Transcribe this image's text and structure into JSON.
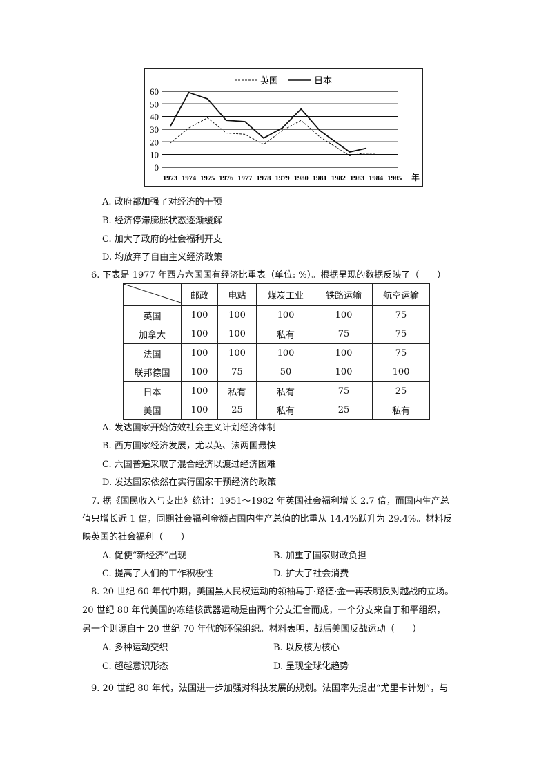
{
  "chart_data": {
    "type": "line",
    "legend": [
      "英国",
      "日本"
    ],
    "legend_position": "top",
    "xlabel": "年",
    "x_ticks": [
      "1973",
      "1974",
      "1975",
      "1976",
      "1977",
      "1978",
      "1979",
      "1980",
      "1981",
      "1982",
      "1983",
      "1984",
      "1985"
    ],
    "y_ticks": [
      "0",
      "10",
      "20",
      "30",
      "40",
      "50",
      "60"
    ],
    "ylim": [
      0,
      60
    ],
    "grid": true,
    "series": [
      {
        "name": "英国",
        "style": "dashed",
        "points": [
          [
            1973,
            19
          ],
          [
            1974,
            31
          ],
          [
            1975,
            39
          ],
          [
            1976,
            27
          ],
          [
            1977,
            26
          ],
          [
            1978,
            18
          ],
          [
            1979,
            29
          ],
          [
            1980,
            37
          ],
          [
            1981,
            24
          ],
          [
            1982.6,
            9
          ],
          [
            1983.3,
            11
          ],
          [
            1984,
            11
          ]
        ]
      },
      {
        "name": "日本",
        "style": "solid",
        "points": [
          [
            1973,
            32
          ],
          [
            1974,
            59
          ],
          [
            1975,
            54
          ],
          [
            1976,
            37
          ],
          [
            1977,
            36
          ],
          [
            1978,
            23
          ],
          [
            1979,
            31
          ],
          [
            1980,
            46
          ],
          [
            1981,
            29
          ],
          [
            1982.6,
            12
          ],
          [
            1983.5,
            15
          ]
        ]
      }
    ]
  },
  "q5_options": [
    "A. 政府都加强了对经济的干预",
    "B. 经济停滞膨胀状态逐渐缓解",
    "C. 加大了政府的社会福利开支",
    "D. 均放弃了自由主义经济政策"
  ],
  "q6": {
    "stem": "6. 下表是 1977 年西方六国国有经济比重表（单位: %）。根据呈现的数据反映了（　　）",
    "headers": [
      "邮政",
      "电站",
      "煤炭工业",
      "铁路运输",
      "航空运输"
    ],
    "rows": [
      {
        "country": "英国",
        "cells": [
          "100",
          "100",
          "100",
          "100",
          "75"
        ]
      },
      {
        "country": "加拿大",
        "cells": [
          "100",
          "100",
          "私有",
          "75",
          "75"
        ]
      },
      {
        "country": "法国",
        "cells": [
          "100",
          "100",
          "100",
          "100",
          "75"
        ]
      },
      {
        "country": "联邦德国",
        "cells": [
          "100",
          "75",
          "50",
          "100",
          "100"
        ]
      },
      {
        "country": "日本",
        "cells": [
          "100",
          "私有",
          "私有",
          "75",
          "25"
        ]
      },
      {
        "country": "美国",
        "cells": [
          "100",
          "25",
          "私有",
          "25",
          "私有"
        ]
      }
    ],
    "options": [
      "A. 发达国家开始仿效社会主义计划经济体制",
      "B. 西方国家经济发展，尤以英、法两国最快",
      "C. 六国普遍采取了混合经济以渡过经济困难",
      "D. 发达国家依然在实行国家干预经济的政策"
    ]
  },
  "q7": {
    "lines": [
      "7. 据《国民收入与支出》统计：1951～1982 年英国社会福利增长 2.7 倍，而国内生产总",
      "值只增长近 1 倍，同期社会福利金额占国内生产总值的比重从 14.4%跃升为 29.4%。材料反",
      "映英国的社会福利（　　）"
    ],
    "options": [
      "A. 促使“新经济”出现",
      "B. 加重了国家财政负担",
      "C. 提高了人们的工作积极性",
      "D. 扩大了社会消费"
    ]
  },
  "q8": {
    "lines": [
      "8. 20 世纪 60 年代中期，美国黑人民权运动的领袖马丁·路德·金一再表明反对越战的立场。",
      "20 世纪 80 年代美国的冻结核武器运动是由两个分支汇合而成，一个分支来自于和平组织，",
      "另一个则源自于 20 世纪 70 年代的环保组织。材料表明，战后美国反战运动（　　）"
    ],
    "options": [
      "A. 多种运动交织",
      "B. 以反核为核心",
      "C. 超越意识形态",
      "D. 呈现全球化趋势"
    ]
  },
  "q9": {
    "lines": [
      "9. 20 世纪 80 年代，法国进一步加强对科技发展的规划。法国率先提出“尤里卡计划”，与"
    ]
  }
}
